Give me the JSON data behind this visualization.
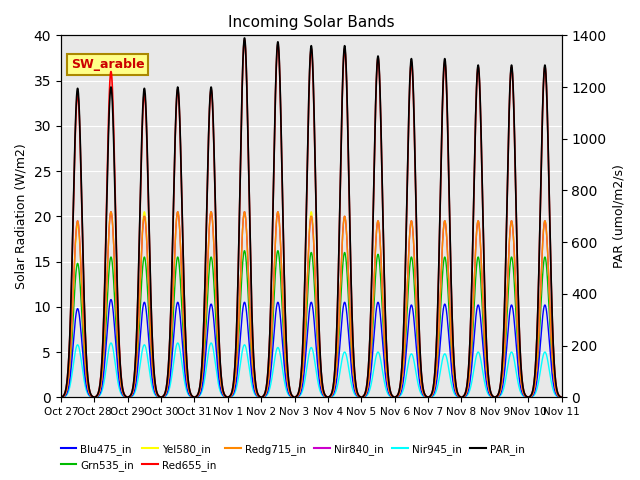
{
  "title": "Incoming Solar Bands",
  "ylabel_left": "Solar Radiation (W/m2)",
  "ylabel_right": "PAR (umol/m2/s)",
  "ylim_left": [
    0,
    40
  ],
  "ylim_right": [
    0,
    1400
  ],
  "background_color": "#e8e8e8",
  "series": {
    "Blu475_in": {
      "color": "#0000ff",
      "lw": 1.0
    },
    "Grn535_in": {
      "color": "#00bb00",
      "lw": 1.0
    },
    "Yel580_in": {
      "color": "#ffff00",
      "lw": 1.0
    },
    "Red655_in": {
      "color": "#ff0000",
      "lw": 1.2
    },
    "Redg715_in": {
      "color": "#ff8800",
      "lw": 1.0
    },
    "Nir840_in": {
      "color": "#cc00cc",
      "lw": 1.0
    },
    "Nir945_in": {
      "color": "#00ffff",
      "lw": 1.0
    },
    "PAR_in": {
      "color": "#000000",
      "lw": 1.2
    }
  },
  "day_peaks": [
    {
      "day": 0,
      "blu": 9.8,
      "grn": 14.8,
      "yel": 19.0,
      "red": 33.5,
      "redg": 19.5,
      "nir840": 19.5,
      "nir945": 5.8,
      "par": 1195
    },
    {
      "day": 1,
      "blu": 10.8,
      "grn": 15.5,
      "yel": 20.5,
      "red": 36.0,
      "redg": 20.5,
      "nir840": 20.5,
      "nir945": 6.0,
      "par": 1200
    },
    {
      "day": 2,
      "blu": 10.5,
      "grn": 15.5,
      "yel": 20.5,
      "red": 33.5,
      "redg": 20.0,
      "nir840": 20.0,
      "nir945": 5.8,
      "par": 1195
    },
    {
      "day": 3,
      "blu": 10.5,
      "grn": 15.5,
      "yel": 20.5,
      "red": 34.0,
      "redg": 20.5,
      "nir840": 20.5,
      "nir945": 6.0,
      "par": 1200
    },
    {
      "day": 4,
      "blu": 10.3,
      "grn": 15.5,
      "yel": 20.5,
      "red": 34.0,
      "redg": 20.5,
      "nir840": 20.5,
      "nir945": 6.0,
      "par": 1200
    },
    {
      "day": 5,
      "blu": 10.5,
      "grn": 16.2,
      "yel": 20.5,
      "red": 39.5,
      "redg": 20.5,
      "nir840": 20.5,
      "nir945": 5.8,
      "par": 1390
    },
    {
      "day": 6,
      "blu": 10.5,
      "grn": 16.2,
      "yel": 20.5,
      "red": 39.0,
      "redg": 20.5,
      "nir840": 20.5,
      "nir945": 5.5,
      "par": 1375
    },
    {
      "day": 7,
      "blu": 10.5,
      "grn": 16.0,
      "yel": 20.5,
      "red": 38.5,
      "redg": 20.0,
      "nir840": 20.0,
      "nir945": 5.5,
      "par": 1360
    },
    {
      "day": 8,
      "blu": 10.5,
      "grn": 16.0,
      "yel": 20.0,
      "red": 38.5,
      "redg": 20.0,
      "nir840": 20.0,
      "nir945": 5.0,
      "par": 1360
    },
    {
      "day": 9,
      "blu": 10.5,
      "grn": 15.8,
      "yel": 19.5,
      "red": 37.5,
      "redg": 19.5,
      "nir840": 19.5,
      "nir945": 5.0,
      "par": 1320
    },
    {
      "day": 10,
      "blu": 10.2,
      "grn": 15.5,
      "yel": 19.5,
      "red": 37.0,
      "redg": 19.5,
      "nir840": 19.5,
      "nir945": 4.8,
      "par": 1310
    },
    {
      "day": 11,
      "blu": 10.3,
      "grn": 15.5,
      "yel": 19.5,
      "red": 37.0,
      "redg": 19.5,
      "nir840": 19.5,
      "nir945": 4.8,
      "par": 1310
    },
    {
      "day": 12,
      "blu": 10.2,
      "grn": 15.5,
      "yel": 19.5,
      "red": 36.5,
      "redg": 19.5,
      "nir840": 19.5,
      "nir945": 5.0,
      "par": 1285
    },
    {
      "day": 13,
      "blu": 10.2,
      "grn": 15.5,
      "yel": 19.5,
      "red": 36.5,
      "redg": 19.5,
      "nir840": 19.5,
      "nir945": 5.0,
      "par": 1285
    },
    {
      "day": 14,
      "blu": 10.2,
      "grn": 15.5,
      "yel": 19.5,
      "red": 36.5,
      "redg": 19.5,
      "nir840": 19.5,
      "nir945": 5.0,
      "par": 1285
    }
  ],
  "tick_labels": [
    "Oct 27",
    "Oct 28",
    "Oct 29",
    "Oct 30",
    "Oct 31",
    "Nov 1",
    "Nov 2",
    "Nov 3",
    "Nov 4",
    "Nov 5",
    "Nov 6",
    "Nov 7",
    "Nov 8",
    "Nov 9",
    "Nov 10",
    "Nov 11"
  ],
  "sw_arable_label": "SW_arable",
  "sw_arable_color": "#cc0000",
  "sw_arable_bg": "#ffff88",
  "sw_arable_border": "#aa8800"
}
